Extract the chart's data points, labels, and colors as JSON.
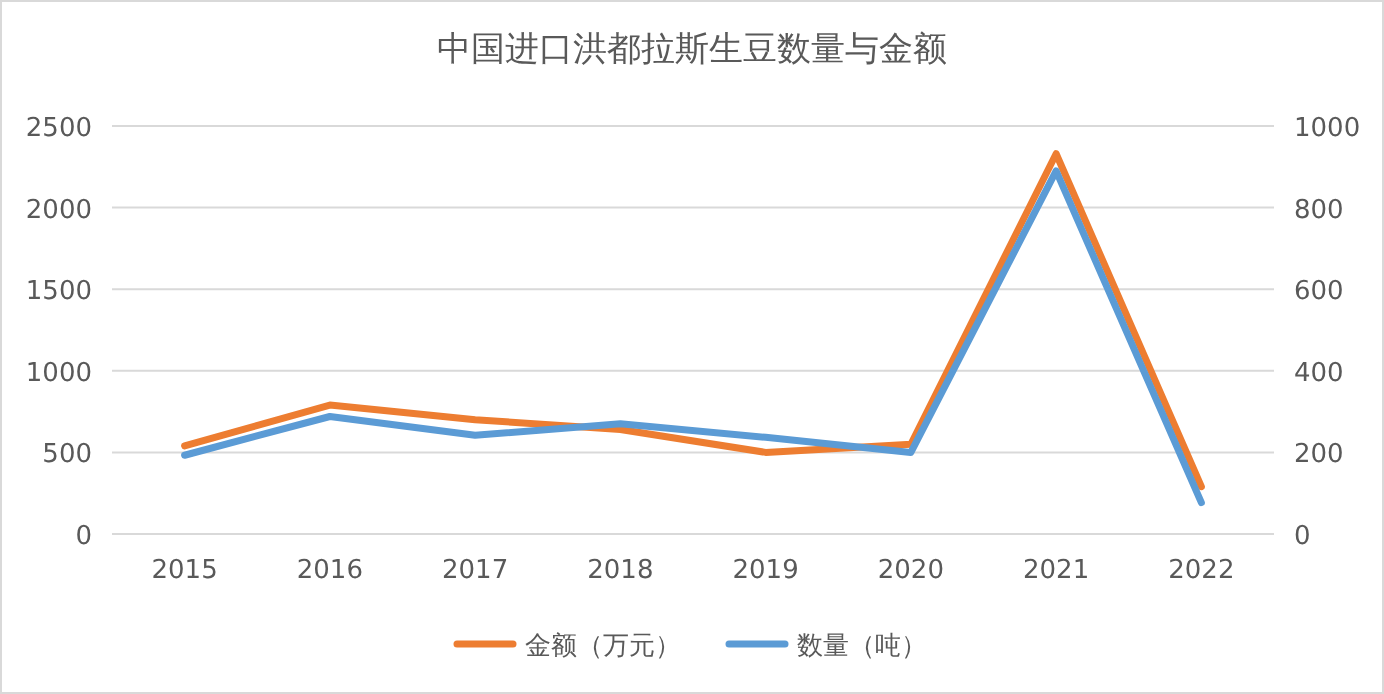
{
  "chart_data": {
    "type": "line",
    "title": "中国进口洪都拉斯生豆数量与金额",
    "categories": [
      "2015",
      "2016",
      "2017",
      "2018",
      "2019",
      "2020",
      "2021",
      "2022"
    ],
    "series": [
      {
        "name": "金额（万元）",
        "color": "#ed7d31",
        "values": [
          540,
          790,
          700,
          640,
          500,
          550,
          2330,
          290
        ]
      },
      {
        "name": "数量（吨）",
        "color": "#5b9bd5",
        "axis": "y2",
        "values": [
          193,
          288,
          242,
          270,
          237,
          200,
          890,
          77
        ]
      }
    ],
    "ylim": [
      0,
      2500
    ],
    "yticks": [
      0,
      500,
      1000,
      1500,
      2000,
      2500
    ],
    "y2lim": [
      0,
      1000
    ],
    "y2ticks": [
      0,
      200,
      400,
      600,
      800,
      1000
    ],
    "grid": "y",
    "legend": "bottom",
    "marker": "none",
    "line_style": "solid"
  }
}
